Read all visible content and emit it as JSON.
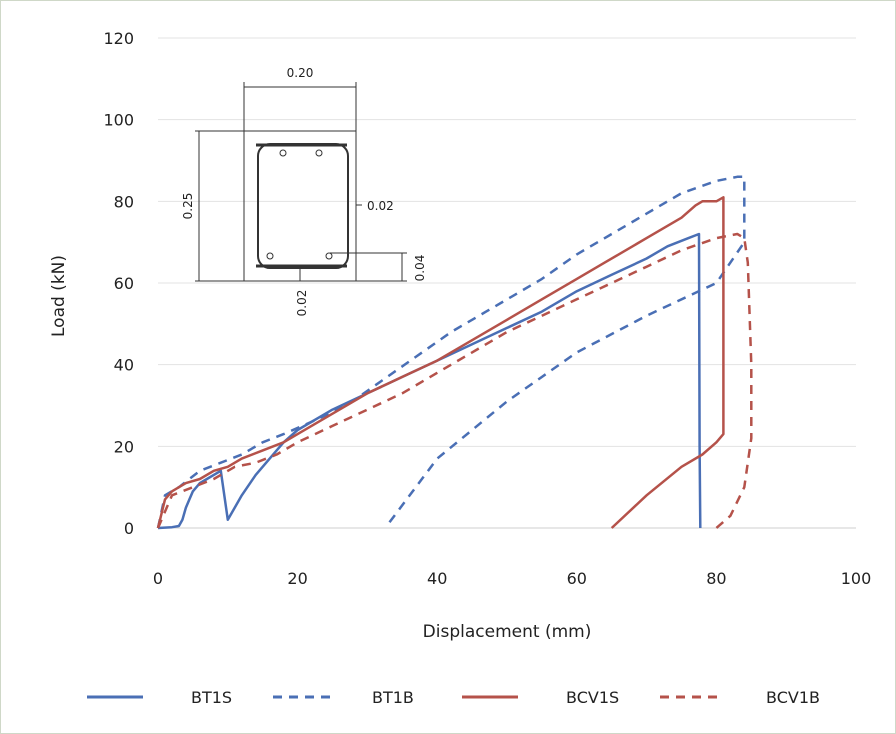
{
  "chart_data": {
    "type": "line",
    "title": "",
    "xlabel": "Displacement (mm)",
    "ylabel": "Load (kN)",
    "xlim": [
      0,
      100
    ],
    "ylim": [
      0,
      120
    ],
    "xticks": [
      "0",
      "20",
      "40",
      "60",
      "80",
      "100"
    ],
    "yticks": [
      "0",
      "20",
      "40",
      "60",
      "80",
      "100",
      "120"
    ],
    "grid": true,
    "legend_position": "bottom",
    "series": [
      {
        "name": "BT1S",
        "color": "#4a6fb5",
        "dash": "solid",
        "x": [
          0,
          2,
          3,
          3.5,
          4,
          4.5,
          5,
          6,
          7,
          9,
          10,
          12,
          14,
          16,
          18,
          20,
          25,
          30,
          35,
          40,
          45,
          50,
          55,
          60,
          65,
          70,
          73,
          76,
          77.5,
          77.6,
          77.7
        ],
        "y": [
          0,
          0.2,
          0.5,
          2,
          5,
          7,
          9,
          11,
          12,
          14,
          2,
          8,
          13,
          17,
          21,
          24,
          29,
          33,
          37,
          41,
          45,
          49,
          53,
          58,
          62,
          66,
          69,
          71,
          72,
          20,
          0
        ]
      },
      {
        "name": "BT1B",
        "color": "#4a6fb5",
        "dash": "dashed",
        "x": [
          0,
          1,
          3,
          6,
          9,
          12,
          15,
          18,
          22,
          27,
          32,
          37,
          42,
          47,
          51,
          55,
          60,
          65,
          70,
          75,
          80,
          83,
          84,
          84,
          80,
          70,
          60,
          50,
          40,
          33
        ],
        "y": [
          0,
          8,
          10,
          14,
          16,
          18,
          21,
          23,
          26,
          30,
          36,
          42,
          48,
          53,
          57,
          61,
          67,
          72,
          77,
          82,
          85,
          86,
          86,
          70,
          60,
          52,
          43,
          31,
          17,
          1
        ]
      },
      {
        "name": "BCV1S",
        "color": "#b5524a",
        "dash": "solid",
        "x": [
          0,
          1,
          2,
          4,
          6,
          8,
          10,
          12,
          15,
          18,
          20,
          25,
          30,
          35,
          40,
          45,
          50,
          55,
          60,
          64,
          66,
          70,
          75,
          77,
          78,
          80,
          81,
          81,
          80,
          78,
          75,
          70,
          65
        ],
        "y": [
          0,
          7,
          9,
          11,
          12,
          14,
          15,
          17,
          19,
          21,
          23,
          28,
          33,
          37,
          41,
          46,
          51,
          56,
          61,
          65,
          67,
          71,
          76,
          79,
          80,
          80,
          81,
          23,
          21,
          18,
          15,
          8,
          0
        ]
      },
      {
        "name": "BCV1B",
        "color": "#b5524a",
        "dash": "dashed",
        "x": [
          0,
          2,
          5,
          8,
          11,
          14,
          17,
          20,
          25,
          30,
          35,
          40,
          45,
          50,
          55,
          60,
          65,
          70,
          75,
          80,
          83,
          84,
          84.5,
          85,
          85,
          84,
          82,
          80
        ],
        "y": [
          0,
          8,
          10,
          12,
          15,
          16,
          18,
          21,
          25,
          29,
          33,
          38,
          43,
          48,
          52,
          56,
          60,
          64,
          68,
          71,
          72,
          71,
          65,
          40,
          22,
          10,
          3,
          0
        ]
      }
    ],
    "annotation": {
      "inset": "cross-section",
      "dims": [
        "0.20",
        "0.25",
        "0.02",
        "0.04",
        "0.02"
      ]
    }
  }
}
